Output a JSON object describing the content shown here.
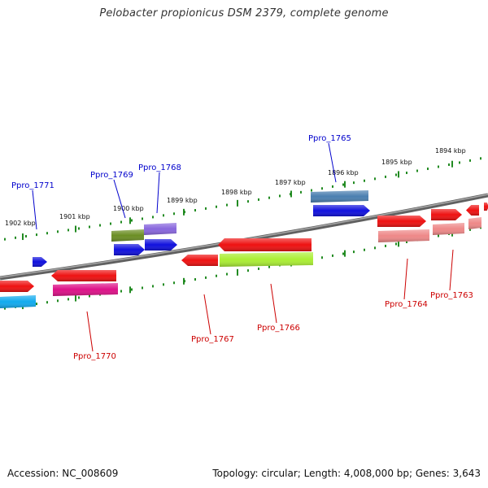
{
  "title": "Pelobacter propionicus DSM 2379, complete genome",
  "footer": {
    "accession": "Accession: NC_008609",
    "summary": "Topology: circular; Length: 4,008,000 bp; Genes: 3,643"
  },
  "colors": {
    "backbone": "#808080",
    "tick": "#228b22",
    "label_top": "#0000cc",
    "label_bottom": "#cc0000"
  },
  "scale_ticks": [
    {
      "label": "1902 kbp"
    },
    {
      "label": "1901 kbp"
    },
    {
      "label": "1900 kbp"
    },
    {
      "label": "1899 kbp"
    },
    {
      "label": "1898 kbp"
    },
    {
      "label": "1897 kbp"
    },
    {
      "label": "1896 kbp"
    },
    {
      "label": "1895 kbp"
    },
    {
      "label": "1894 kbp"
    }
  ],
  "gene_labels": [
    {
      "name": "Ppro_1771",
      "strand": "top"
    },
    {
      "name": "Ppro_1769",
      "strand": "top"
    },
    {
      "name": "Ppro_1768",
      "strand": "top"
    },
    {
      "name": "Ppro_1765",
      "strand": "top"
    },
    {
      "name": "Ppro_1770",
      "strand": "bottom"
    },
    {
      "name": "Ppro_1767",
      "strand": "bottom"
    },
    {
      "name": "Ppro_1766",
      "strand": "bottom"
    },
    {
      "name": "Ppro_1764",
      "strand": "bottom"
    },
    {
      "name": "Ppro_1763",
      "strand": "bottom"
    }
  ],
  "features": [
    {
      "name": "blue-cds-far-left",
      "color": "#1010dd"
    },
    {
      "name": "red-cds-left-edge",
      "color": "#ee1111"
    },
    {
      "name": "cyan-gene-left-edge",
      "color": "#11aaee"
    },
    {
      "name": "red-cds-ppro1770",
      "color": "#ee1111"
    },
    {
      "name": "magenta-gene-ppro1770",
      "color": "#dd1188"
    },
    {
      "name": "olive-gene-ppro1769",
      "color": "#6b8e23"
    },
    {
      "name": "purple-gene-ppro1768",
      "color": "#8866dd"
    },
    {
      "name": "blue-cds-ppro1769",
      "color": "#1010dd"
    },
    {
      "name": "blue-cds-ppro1768",
      "color": "#1010dd"
    },
    {
      "name": "red-cds-ppro1767",
      "color": "#ee1111"
    },
    {
      "name": "red-cds-ppro1766",
      "color": "#ee1111"
    },
    {
      "name": "green-gene-ppro1766",
      "color": "#aaee33"
    },
    {
      "name": "steelblue-gene-ppro1765",
      "color": "#4a7fb0"
    },
    {
      "name": "blue-cds-ppro1765",
      "color": "#1010dd"
    },
    {
      "name": "red-cds-ppro1764",
      "color": "#ee1111"
    },
    {
      "name": "salmon-gene-ppro1764",
      "color": "#ee8888"
    },
    {
      "name": "red-cds-ppro1763",
      "color": "#ee1111"
    },
    {
      "name": "salmon-gene-ppro1763",
      "color": "#ee8888"
    },
    {
      "name": "red-cds-right-1",
      "color": "#ee1111"
    },
    {
      "name": "salmon-gene-right-1",
      "color": "#ee8888"
    },
    {
      "name": "red-cds-right-edge",
      "color": "#ee1111"
    }
  ]
}
